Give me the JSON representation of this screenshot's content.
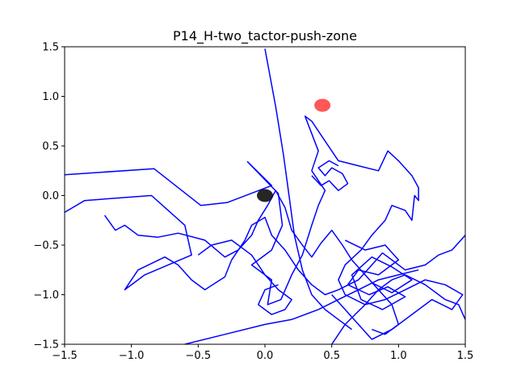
{
  "chart_data": {
    "type": "line",
    "title": "P14_H-two_tactor-push-zone",
    "xlabel": "",
    "ylabel": "",
    "xlim": [
      -1.5,
      1.5
    ],
    "ylim": [
      -1.5,
      1.5
    ],
    "xticks": [
      "−1.5",
      "−1.0",
      "−0.5",
      "0.0",
      "0.5",
      "1.0",
      "1.5"
    ],
    "xtick_values": [
      -1.5,
      -1.0,
      -0.5,
      0.0,
      0.5,
      1.0,
      1.5
    ],
    "yticks": [
      "−1.5",
      "−1.0",
      "−0.5",
      "0.0",
      "0.5",
      "1.0",
      "1.5"
    ],
    "ytick_values": [
      -1.5,
      -1.0,
      -0.5,
      0.0,
      0.5,
      1.0,
      1.5
    ],
    "grid": false,
    "line_color": "#0000ff",
    "start_marker": {
      "x": 0.0,
      "y": 0.0,
      "color": "#000000"
    },
    "target_marker": {
      "x": 0.43,
      "y": 0.91,
      "color": "#ff4444"
    },
    "series": [
      {
        "values": [
          [
            -1.5,
            0.21
          ],
          [
            -0.83,
            0.27
          ],
          [
            -0.48,
            -0.1
          ],
          [
            -0.28,
            -0.07
          ],
          [
            0.05,
            0.1
          ],
          [
            -0.13,
            0.34
          ],
          [
            0.1,
            0.02
          ],
          [
            0.13,
            -0.3
          ],
          [
            0.05,
            -0.55
          ],
          [
            -0.1,
            -0.7
          ],
          [
            0.05,
            -0.85
          ],
          [
            0.02,
            -1.1
          ],
          [
            0.12,
            -1.05
          ],
          [
            0.2,
            -0.8
          ],
          [
            0.28,
            -0.6
          ],
          [
            0.35,
            -0.3
          ],
          [
            0.4,
            -0.1
          ],
          [
            0.45,
            0.05
          ],
          [
            0.35,
            0.25
          ],
          [
            0.4,
            0.45
          ],
          [
            0.3,
            0.8
          ],
          [
            0.35,
            0.75
          ],
          [
            0.45,
            0.55
          ],
          [
            0.55,
            0.35
          ],
          [
            0.7,
            0.3
          ],
          [
            0.85,
            0.25
          ],
          [
            0.92,
            0.45
          ],
          [
            1.0,
            0.35
          ],
          [
            1.1,
            0.2
          ],
          [
            1.15,
            0.08
          ],
          [
            1.15,
            -0.05
          ],
          [
            1.12,
            0.0
          ],
          [
            1.1,
            -0.25
          ],
          [
            1.05,
            -0.15
          ],
          [
            0.95,
            -0.1
          ],
          [
            0.9,
            -0.25
          ],
          [
            0.8,
            -0.4
          ],
          [
            0.72,
            -0.55
          ],
          [
            0.6,
            -0.7
          ],
          [
            0.55,
            -0.85
          ],
          [
            0.6,
            -1.0
          ],
          [
            0.75,
            -1.1
          ],
          [
            0.9,
            -1.05
          ],
          [
            1.05,
            -0.95
          ],
          [
            1.2,
            -0.85
          ],
          [
            1.35,
            -0.9
          ],
          [
            1.48,
            -1.0
          ],
          [
            1.4,
            -1.15
          ],
          [
            1.25,
            -1.05
          ],
          [
            1.1,
            -1.2
          ],
          [
            0.95,
            -1.35
          ],
          [
            0.8,
            -1.45
          ],
          [
            0.7,
            -1.3
          ],
          [
            0.6,
            -1.15
          ],
          [
            0.5,
            -1.0
          ]
        ]
      },
      {
        "values": [
          [
            -1.5,
            -0.17
          ],
          [
            -1.35,
            -0.05
          ],
          [
            -0.85,
            0.0
          ],
          [
            -0.6,
            -0.3
          ],
          [
            -0.55,
            -0.6
          ],
          [
            -0.9,
            -0.8
          ],
          [
            -1.05,
            -0.95
          ],
          [
            -0.95,
            -0.75
          ],
          [
            -0.75,
            -0.62
          ],
          [
            -0.65,
            -0.7
          ],
          [
            -0.55,
            -0.85
          ],
          [
            -0.45,
            -0.95
          ],
          [
            -0.3,
            -0.82
          ],
          [
            -0.25,
            -0.65
          ],
          [
            -0.15,
            -0.45
          ],
          [
            -0.1,
            -0.3
          ],
          [
            0.0,
            -0.22
          ],
          [
            0.05,
            -0.4
          ],
          [
            0.15,
            -0.55
          ],
          [
            0.25,
            -0.75
          ],
          [
            0.35,
            -0.9
          ],
          [
            0.45,
            -1.0
          ],
          [
            0.55,
            -0.95
          ],
          [
            0.7,
            -0.85
          ],
          [
            0.8,
            -0.7
          ],
          [
            0.88,
            -0.58
          ],
          [
            0.95,
            -0.65
          ],
          [
            1.05,
            -0.75
          ],
          [
            1.2,
            -0.7
          ],
          [
            1.3,
            -0.6
          ],
          [
            1.4,
            -0.55
          ],
          [
            1.5,
            -0.4
          ]
        ]
      },
      {
        "values": [
          [
            -1.2,
            -0.2
          ],
          [
            -1.12,
            -0.35
          ],
          [
            -1.05,
            -0.3
          ],
          [
            -0.95,
            -0.4
          ],
          [
            -0.8,
            -0.42
          ],
          [
            -0.65,
            -0.38
          ],
          [
            -0.45,
            -0.45
          ],
          [
            -0.3,
            -0.62
          ],
          [
            -0.2,
            -0.55
          ],
          [
            -0.1,
            -0.4
          ],
          [
            -0.05,
            -0.25
          ],
          [
            0.02,
            -0.1
          ],
          [
            0.08,
            0.05
          ],
          [
            0.15,
            -0.12
          ],
          [
            0.2,
            -0.35
          ],
          [
            0.28,
            -0.5
          ],
          [
            0.35,
            -0.62
          ],
          [
            0.42,
            -0.48
          ],
          [
            0.5,
            -0.35
          ],
          [
            0.58,
            -0.5
          ],
          [
            0.65,
            -0.65
          ],
          [
            0.75,
            -0.8
          ],
          [
            0.85,
            -0.95
          ],
          [
            0.95,
            -1.1
          ],
          [
            1.0,
            -1.3
          ],
          [
            0.9,
            -1.4
          ],
          [
            0.8,
            -1.35
          ]
        ]
      },
      {
        "values": [
          [
            -0.6,
            -1.5
          ],
          [
            -0.3,
            -1.4
          ],
          [
            0.0,
            -1.3
          ],
          [
            0.2,
            -1.25
          ],
          [
            0.4,
            -1.15
          ],
          [
            0.55,
            -1.05
          ],
          [
            0.7,
            -0.95
          ],
          [
            0.85,
            -0.85
          ],
          [
            1.0,
            -0.8
          ],
          [
            1.15,
            -0.75
          ]
        ]
      },
      {
        "values": [
          [
            0.0,
            1.48
          ],
          [
            0.08,
            0.9
          ],
          [
            0.14,
            0.4
          ],
          [
            0.18,
            0.0
          ],
          [
            0.22,
            -0.4
          ],
          [
            0.28,
            -0.75
          ],
          [
            0.35,
            -1.0
          ],
          [
            0.45,
            -1.15
          ],
          [
            0.55,
            -1.25
          ],
          [
            0.65,
            -1.35
          ]
        ]
      },
      {
        "values": [
          [
            -0.5,
            -0.6
          ],
          [
            -0.4,
            -0.5
          ],
          [
            -0.25,
            -0.45
          ],
          [
            -0.1,
            -0.6
          ],
          [
            0.0,
            -0.8
          ],
          [
            0.1,
            -0.95
          ],
          [
            0.2,
            -1.05
          ],
          [
            0.15,
            -1.15
          ],
          [
            0.05,
            -1.2
          ],
          [
            -0.05,
            -1.1
          ],
          [
            0.0,
            -0.95
          ],
          [
            0.1,
            -0.9
          ]
        ]
      },
      {
        "values": [
          [
            0.5,
            -1.5
          ],
          [
            0.6,
            -1.3
          ],
          [
            0.75,
            -1.1
          ],
          [
            0.85,
            -0.95
          ],
          [
            0.95,
            -0.85
          ],
          [
            1.05,
            -0.8
          ],
          [
            1.2,
            -0.9
          ],
          [
            1.35,
            -1.05
          ],
          [
            1.45,
            -1.1
          ],
          [
            1.5,
            -1.25
          ]
        ]
      },
      {
        "values": [
          [
            0.6,
            -0.45
          ],
          [
            0.75,
            -0.55
          ],
          [
            0.9,
            -0.5
          ],
          [
            1.0,
            -0.65
          ],
          [
            0.85,
            -0.8
          ],
          [
            0.7,
            -0.75
          ],
          [
            0.62,
            -0.9
          ],
          [
            0.78,
            -1.0
          ],
          [
            0.92,
            -0.92
          ],
          [
            1.05,
            -1.02
          ],
          [
            0.88,
            -1.15
          ],
          [
            0.72,
            -1.05
          ],
          [
            0.65,
            -0.8
          ],
          [
            0.8,
            -0.62
          ],
          [
            0.95,
            -0.72
          ],
          [
            1.1,
            -0.85
          ],
          [
            0.95,
            -0.98
          ],
          [
            0.8,
            -0.88
          ]
        ]
      },
      {
        "values": [
          [
            0.35,
            0.2
          ],
          [
            0.42,
            0.1
          ],
          [
            0.48,
            0.15
          ],
          [
            0.55,
            0.05
          ],
          [
            0.62,
            0.12
          ],
          [
            0.58,
            0.22
          ],
          [
            0.5,
            0.28
          ],
          [
            0.45,
            0.2
          ],
          [
            0.4,
            0.28
          ],
          [
            0.48,
            0.35
          ],
          [
            0.55,
            0.3
          ]
        ]
      }
    ]
  }
}
